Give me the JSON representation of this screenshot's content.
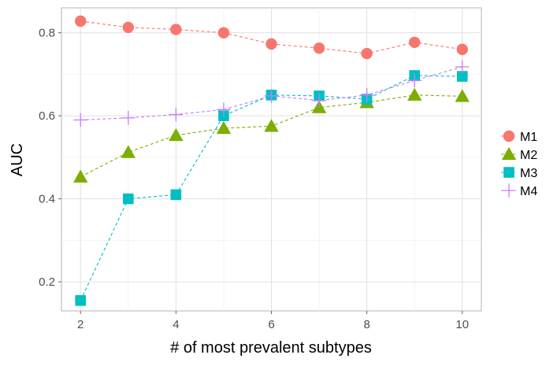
{
  "chart_data": {
    "type": "line",
    "title": "",
    "xlabel": "# of most prevalent subtypes",
    "ylabel": "AUC",
    "x": [
      2,
      3,
      4,
      5,
      6,
      7,
      8,
      9,
      10
    ],
    "xlim": [
      1.6,
      10.4
    ],
    "ylim": [
      0.13,
      0.86
    ],
    "x_ticks": [
      2,
      4,
      6,
      8,
      10
    ],
    "x_tick_labels": [
      "2",
      "4",
      "6",
      "8",
      "10"
    ],
    "y_ticks": [
      0.2,
      0.4,
      0.6,
      0.8
    ],
    "y_tick_labels": [
      "0.2",
      "0.4",
      "0.6",
      "0.8"
    ],
    "grid": true,
    "line_style": "dashed",
    "legend_position": "right",
    "series": [
      {
        "name": "M1",
        "marker": "circle",
        "color": "#F8766D",
        "values": [
          0.828,
          0.813,
          0.808,
          0.8,
          0.773,
          0.763,
          0.75,
          0.777,
          0.76
        ]
      },
      {
        "name": "M2",
        "marker": "triangle",
        "color": "#7CAE00",
        "values": [
          0.453,
          0.512,
          0.553,
          0.57,
          0.575,
          0.62,
          0.632,
          0.65,
          0.647
        ]
      },
      {
        "name": "M3",
        "marker": "square",
        "color": "#00BFC4",
        "values": [
          0.155,
          0.4,
          0.41,
          0.6,
          0.65,
          0.648,
          0.64,
          0.697,
          0.695
        ]
      },
      {
        "name": "M4",
        "marker": "plus",
        "color": "#C77CFF",
        "values": [
          0.59,
          0.595,
          0.603,
          0.615,
          0.648,
          0.637,
          0.65,
          0.685,
          0.718
        ]
      }
    ]
  }
}
